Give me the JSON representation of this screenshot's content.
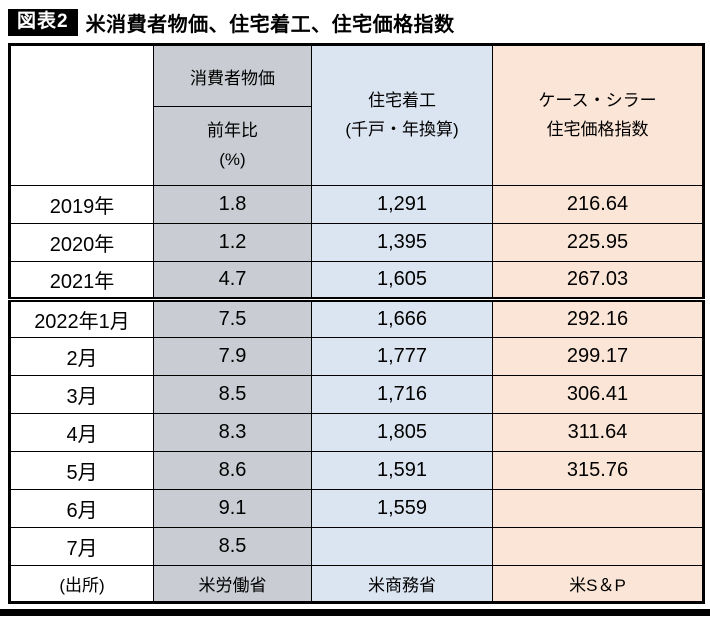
{
  "title": {
    "label": "図表2",
    "text": "米消費者物価、住宅着工、住宅価格指数"
  },
  "colors": {
    "cpi_bg": "#c9cdd3",
    "housing_bg": "#dbe5f1",
    "cs_bg": "#fbe5d7",
    "line": "#000000"
  },
  "table": {
    "header": {
      "corner": "",
      "cpi_group": "消費者物価",
      "cpi_sub_line1": "前年比",
      "cpi_sub_line2": "(%)",
      "housing_line1": "住宅着工",
      "housing_line2": "(千戸・年換算)",
      "cs_line1": "ケース・シラー",
      "cs_line2": "住宅価格指数"
    },
    "rows": [
      {
        "label": "2019年",
        "cpi": "1.8",
        "housing": "1,291",
        "cs": "216.64"
      },
      {
        "label": "2020年",
        "cpi": "1.2",
        "housing": "1,395",
        "cs": "225.95"
      },
      {
        "label": "2021年",
        "cpi": "4.7",
        "housing": "1,605",
        "cs": "267.03"
      },
      {
        "label": "2022年1月",
        "cpi": "7.5",
        "housing": "1,666",
        "cs": "292.16"
      },
      {
        "label": "2月",
        "cpi": "7.9",
        "housing": "1,777",
        "cs": "299.17"
      },
      {
        "label": "3月",
        "cpi": "8.5",
        "housing": "1,716",
        "cs": "306.41"
      },
      {
        "label": "4月",
        "cpi": "8.3",
        "housing": "1,805",
        "cs": "311.64"
      },
      {
        "label": "5月",
        "cpi": "8.6",
        "housing": "1,591",
        "cs": "315.76"
      },
      {
        "label": "6月",
        "cpi": "9.1",
        "housing": "1,559",
        "cs": ""
      },
      {
        "label": "7月",
        "cpi": "8.5",
        "housing": "",
        "cs": ""
      }
    ],
    "source": {
      "label": "(出所)",
      "cpi": "米労働省",
      "housing": "米商務省",
      "cs": "米S＆P"
    }
  }
}
